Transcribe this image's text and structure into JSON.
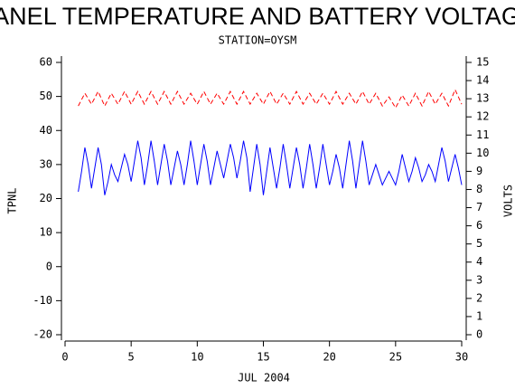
{
  "chart_data": {
    "type": "line",
    "title": "PANEL TEMPERATURE AND BATTERY VOLTAGE",
    "subtitle": "STATION=OYSM",
    "x_label": "JUL 2004",
    "y_label": "TPNL",
    "y2_label": "VOLTS",
    "xlim": [
      0,
      30
    ],
    "xticks": [
      0,
      5,
      10,
      15,
      20,
      25,
      30
    ],
    "ylim": [
      -20,
      60
    ],
    "yticks": [
      -20,
      -10,
      0,
      10,
      20,
      30,
      40,
      50,
      60
    ],
    "y2lim": [
      0,
      15
    ],
    "y2ticks": [
      0,
      1,
      2,
      3,
      4,
      5,
      6,
      7,
      8,
      9,
      10,
      11,
      12,
      13,
      14,
      15
    ],
    "series": [
      {
        "name": "TPNL",
        "color": "#0000ff",
        "dashed": false,
        "x": [
          1,
          1.25,
          1.5,
          1.75,
          2,
          2.25,
          2.5,
          2.75,
          3,
          3.25,
          3.5,
          3.75,
          4,
          4.25,
          4.5,
          4.75,
          5,
          5.25,
          5.5,
          5.75,
          6,
          6.25,
          6.5,
          6.75,
          7,
          7.25,
          7.5,
          7.75,
          8,
          8.25,
          8.5,
          8.75,
          9,
          9.25,
          9.5,
          9.75,
          10,
          10.25,
          10.5,
          10.75,
          11,
          11.25,
          11.5,
          11.75,
          12,
          12.25,
          12.5,
          12.75,
          13,
          13.25,
          13.5,
          13.75,
          14,
          14.25,
          14.5,
          14.75,
          15,
          15.25,
          15.5,
          15.75,
          16,
          16.25,
          16.5,
          16.75,
          17,
          17.25,
          17.5,
          17.75,
          18,
          18.25,
          18.5,
          18.75,
          19,
          19.25,
          19.5,
          19.75,
          20,
          20.25,
          20.5,
          20.75,
          21,
          21.25,
          21.5,
          21.75,
          22,
          22.25,
          22.5,
          22.75,
          23,
          23.25,
          23.5,
          23.75,
          24,
          24.25,
          24.5,
          24.75,
          25,
          25.25,
          25.5,
          25.75,
          26,
          26.25,
          26.5,
          26.75,
          27,
          27.25,
          27.5,
          27.75,
          28,
          28.25,
          28.5,
          28.75,
          29,
          29.25,
          29.5,
          29.75,
          30
        ],
        "values": [
          22,
          28,
          35,
          30,
          23,
          29,
          35,
          30,
          21,
          25,
          30,
          27,
          25,
          29,
          33,
          30,
          25,
          31,
          37,
          32,
          24,
          30,
          37,
          31,
          24,
          30,
          36,
          31,
          24,
          29,
          34,
          30,
          24,
          30,
          37,
          31,
          24,
          30,
          36,
          31,
          24,
          29,
          34,
          30,
          26,
          31,
          36,
          32,
          26,
          31,
          37,
          32,
          22,
          29,
          36,
          30,
          21,
          28,
          35,
          29,
          23,
          29,
          36,
          30,
          23,
          29,
          35,
          30,
          23,
          29,
          36,
          30,
          23,
          29,
          36,
          30,
          24,
          28,
          33,
          29,
          23,
          30,
          37,
          31,
          23,
          30,
          37,
          31,
          24,
          27,
          30,
          27,
          24,
          26,
          28,
          26,
          24,
          28,
          33,
          29,
          25,
          28,
          32,
          29,
          25,
          27,
          30,
          28,
          25,
          30,
          35,
          31,
          25,
          29,
          33,
          29,
          24
        ]
      },
      {
        "name": "VOLTS",
        "color": "#ff0000",
        "dashed": true,
        "axis": "y2",
        "x": [
          1,
          1.5,
          2,
          2.5,
          3,
          3.5,
          4,
          4.5,
          5,
          5.5,
          6,
          6.5,
          7,
          7.5,
          8,
          8.5,
          9,
          9.5,
          10,
          10.5,
          11,
          11.5,
          12,
          12.5,
          13,
          13.5,
          14,
          14.5,
          15,
          15.5,
          16,
          16.5,
          17,
          17.5,
          18,
          18.5,
          19,
          19.5,
          20,
          20.5,
          21,
          21.5,
          22,
          22.5,
          23,
          23.5,
          24,
          24.5,
          25,
          25.5,
          26,
          26.5,
          27,
          27.5,
          28,
          28.5,
          29,
          29.5,
          30
        ],
        "values": [
          12.6,
          13.3,
          12.7,
          13.4,
          12.6,
          13.3,
          12.7,
          13.4,
          12.7,
          13.4,
          12.7,
          13.4,
          12.7,
          13.4,
          12.7,
          13.4,
          12.7,
          13.3,
          12.7,
          13.4,
          12.7,
          13.3,
          12.7,
          13.4,
          12.7,
          13.4,
          12.7,
          13.3,
          12.7,
          13.4,
          12.7,
          13.3,
          12.7,
          13.4,
          12.7,
          13.3,
          12.7,
          13.3,
          12.7,
          13.4,
          12.7,
          13.3,
          12.7,
          13.4,
          12.7,
          13.3,
          12.6,
          13.1,
          12.5,
          13.2,
          12.6,
          13.3,
          12.6,
          13.4,
          12.7,
          13.3,
          12.6,
          13.5,
          12.7
        ]
      }
    ]
  }
}
